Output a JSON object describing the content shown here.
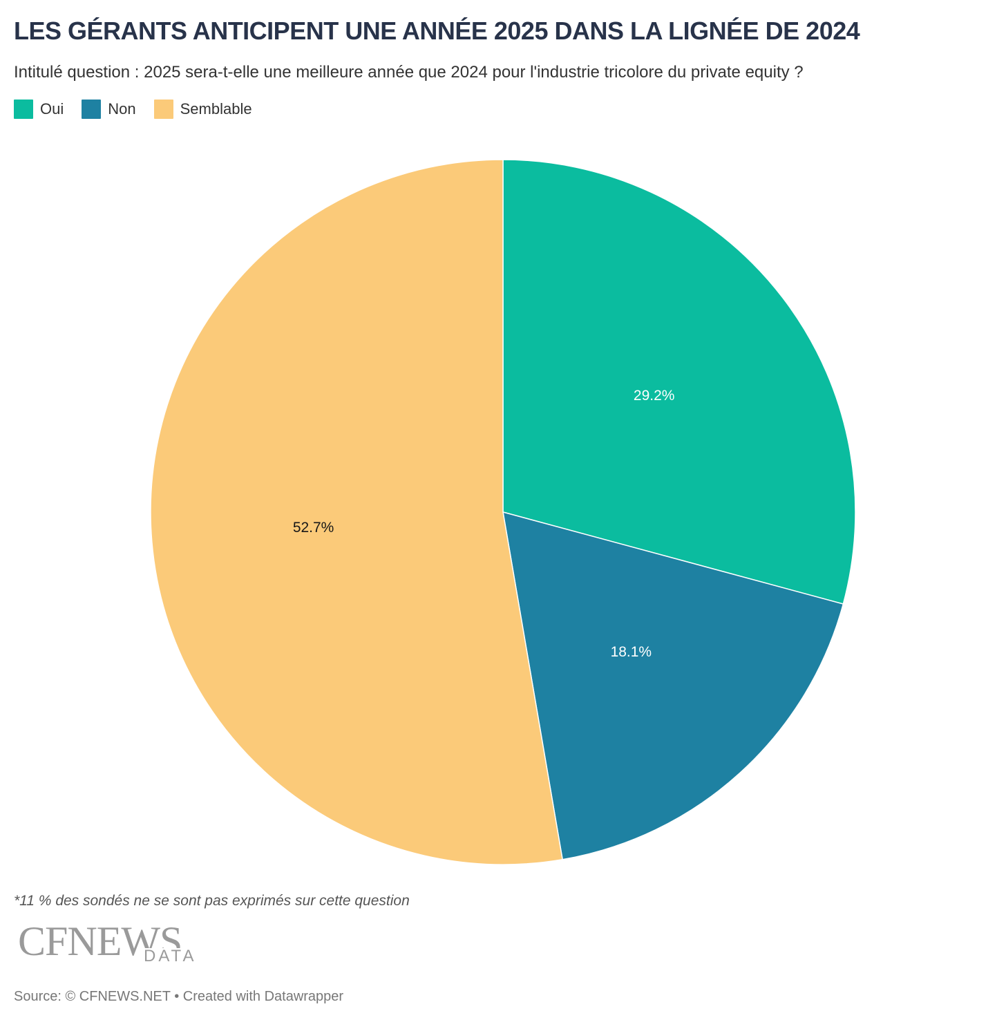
{
  "header": {
    "title": "LES GÉRANTS ANTICIPENT UNE ANNÉE 2025 DANS LA LIGNÉE DE 2024",
    "subtitle": "Intitulé question : 2025 sera-t-elle une meilleure année que 2024 pour l'industrie tricolore du private equity ?"
  },
  "legend": [
    {
      "label": "Oui",
      "color": "#0bbc9f"
    },
    {
      "label": "Non",
      "color": "#1e81a2"
    },
    {
      "label": "Semblable",
      "color": "#fbca79"
    }
  ],
  "chart_data": {
    "type": "pie",
    "title": "LES GÉRANTS ANTICIPENT UNE ANNÉE 2025 DANS LA LIGNÉE DE 2024",
    "subtitle": "Intitulé question : 2025 sera-t-elle une meilleure année que 2024 pour l'industrie tricolore du private equity ?",
    "legend_position": "top-left",
    "slices": [
      {
        "label": "Oui",
        "value": 29.2,
        "display": "29.2%",
        "color": "#0bbc9f",
        "label_color": "#ffffff"
      },
      {
        "label": "Non",
        "value": 18.1,
        "display": "18.1%",
        "color": "#1e81a2",
        "label_color": "#ffffff"
      },
      {
        "label": "Semblable",
        "value": 52.7,
        "display": "52.7%",
        "color": "#fbca79",
        "label_color": "#181818"
      }
    ]
  },
  "footer": {
    "note": "*11 % des sondés ne se sont pas exprimés sur cette question",
    "logo_text": "CFNEWS",
    "logo_subtext": "DATA",
    "source": "Source: © CFNEWS.NET • Created with Datawrapper"
  }
}
